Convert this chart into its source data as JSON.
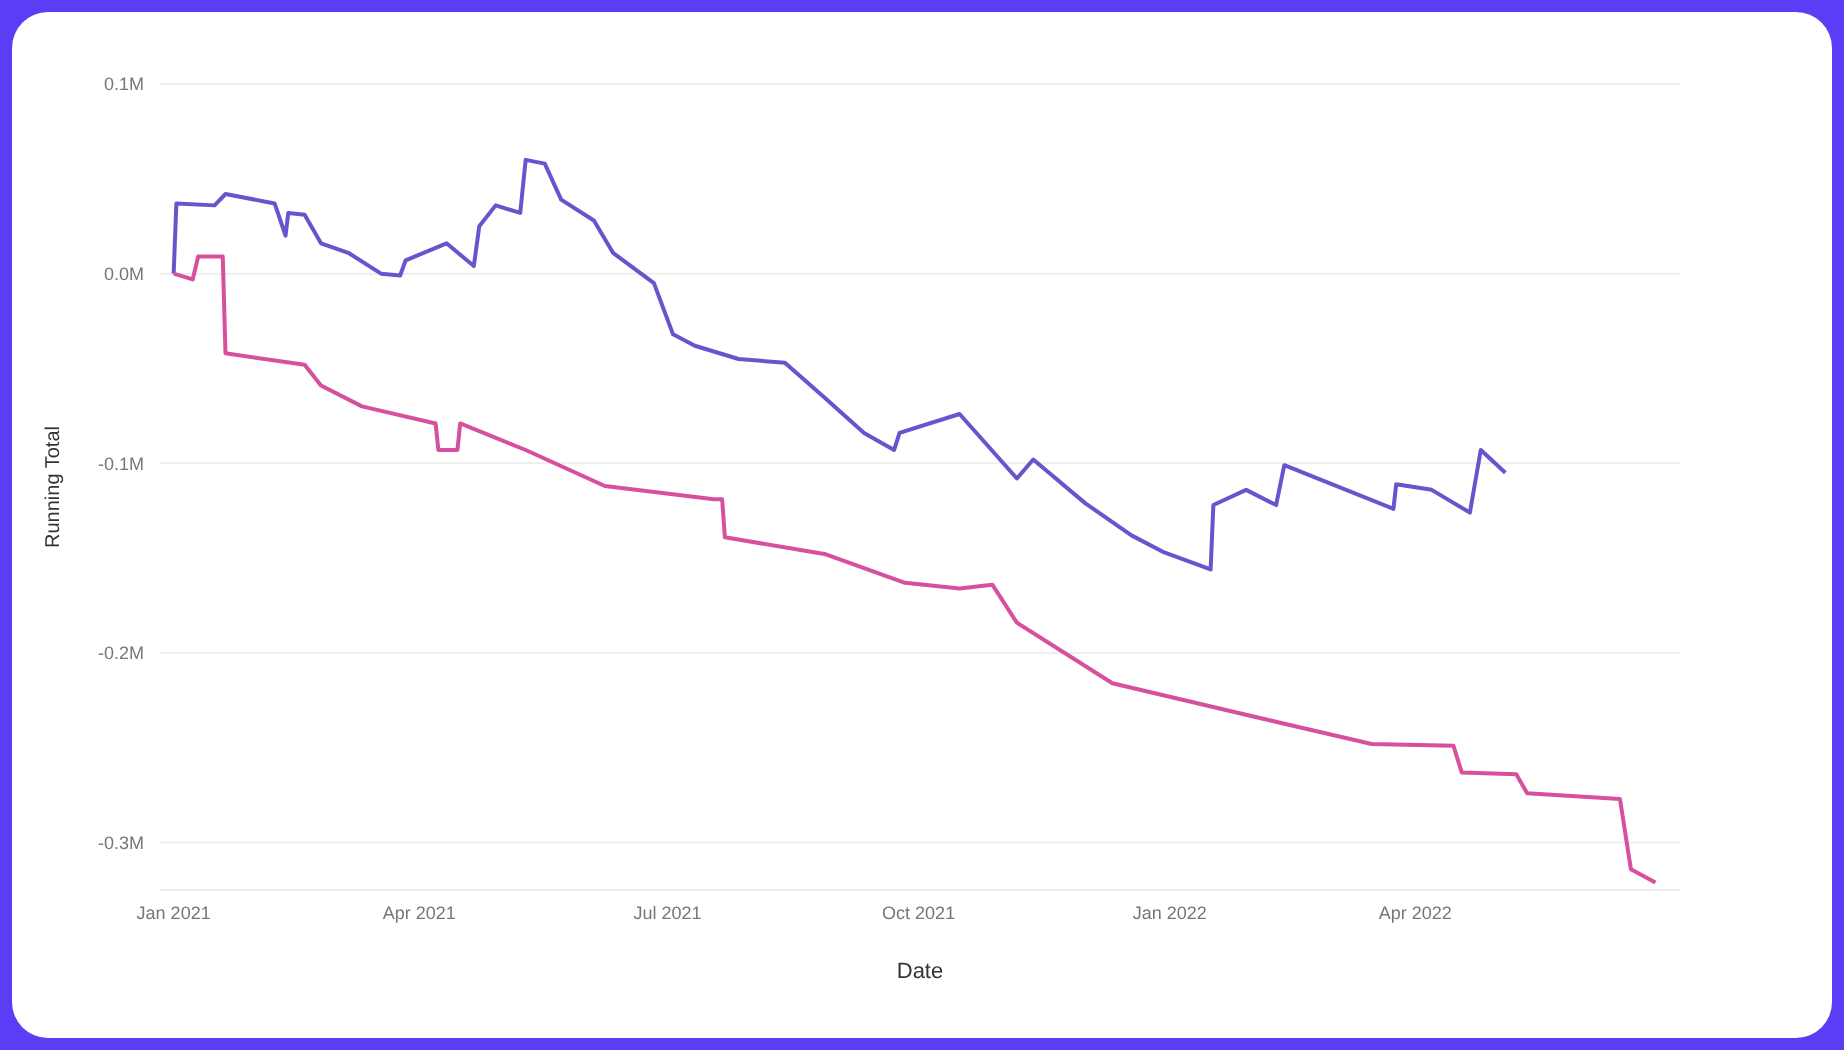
{
  "chart_data": {
    "type": "line",
    "xlabel": "Date",
    "ylabel": "Running Total",
    "xlim": [
      "2020-12-27",
      "2022-07-07"
    ],
    "xticks": [
      {
        "value": "2021-01",
        "label": "Jan 2021"
      },
      {
        "value": "2021-04",
        "label": "Apr 2021"
      },
      {
        "value": "2021-07",
        "label": "Jul 2021"
      },
      {
        "value": "2021-10",
        "label": "Oct 2021"
      },
      {
        "value": "2022-01",
        "label": "Jan 2022"
      },
      {
        "value": "2022-04",
        "label": "Apr 2022"
      }
    ],
    "ylim": [
      -0.325,
      0.1
    ],
    "yticks": [
      {
        "value": 0.1,
        "label": "0.1M"
      },
      {
        "value": 0,
        "label": "0.0M"
      },
      {
        "value": -0.1,
        "label": "-0.1M"
      },
      {
        "value": -0.2,
        "label": "-0.2M"
      },
      {
        "value": -0.3,
        "label": "-0.3M"
      }
    ],
    "grid": "y",
    "marker": "none",
    "line_style": "solid",
    "series": [
      {
        "color": "#6655cc",
        "x": [
          "2021-01-01",
          "2021-01-02",
          "2021-01-16",
          "2021-01-20",
          "2021-02-07",
          "2021-02-11",
          "2021-02-12",
          "2021-02-18",
          "2021-02-24",
          "2021-03-06",
          "2021-03-18",
          "2021-03-25",
          "2021-03-27",
          "2021-04-11",
          "2021-04-21",
          "2021-04-23",
          "2021-04-29",
          "2021-05-08",
          "2021-05-10",
          "2021-05-17",
          "2021-05-23",
          "2021-06-04",
          "2021-06-11",
          "2021-06-26",
          "2021-07-03",
          "2021-07-11",
          "2021-07-27",
          "2021-08-13",
          "2021-08-28",
          "2021-09-11",
          "2021-09-22",
          "2021-09-24",
          "2021-10-16",
          "2021-11-06",
          "2021-11-12",
          "2021-12-01",
          "2021-12-18",
          "2021-12-30",
          "2022-01-16",
          "2022-01-17",
          "2022-01-29",
          "2022-02-09",
          "2022-02-12",
          "2022-03-24",
          "2022-03-25",
          "2022-04-07",
          "2022-04-21",
          "2022-04-25",
          "2022-05-04"
        ],
        "values": [
          0.0,
          0.037,
          0.036,
          0.042,
          0.037,
          0.02,
          0.032,
          0.031,
          0.016,
          0.011,
          0.0,
          -0.001,
          0.007,
          0.016,
          0.004,
          0.025,
          0.036,
          0.032,
          0.06,
          0.058,
          0.039,
          0.028,
          0.011,
          -0.005,
          -0.032,
          -0.038,
          -0.045,
          -0.047,
          -0.066,
          -0.084,
          -0.093,
          -0.084,
          -0.074,
          -0.108,
          -0.098,
          -0.121,
          -0.138,
          -0.147,
          -0.156,
          -0.122,
          -0.114,
          -0.122,
          -0.101,
          -0.124,
          -0.111,
          -0.114,
          -0.126,
          -0.093,
          -0.105
        ]
      },
      {
        "color": "#d6509e",
        "x": [
          "2021-01-01",
          "2021-01-08",
          "2021-01-10",
          "2021-01-19",
          "2021-01-20",
          "2021-02-18",
          "2021-02-24",
          "2021-03-11",
          "2021-04-07",
          "2021-04-08",
          "2021-04-15",
          "2021-04-16",
          "2021-05-10",
          "2021-06-08",
          "2021-07-18",
          "2021-07-21",
          "2021-07-22",
          "2021-08-28",
          "2021-09-26",
          "2021-10-16",
          "2021-10-28",
          "2021-11-06",
          "2021-12-11",
          "2022-02-14",
          "2022-03-16",
          "2022-04-15",
          "2022-04-18",
          "2022-05-08",
          "2022-05-12",
          "2022-06-15",
          "2022-06-19",
          "2022-06-28"
        ],
        "values": [
          0.0,
          -0.003,
          0.009,
          0.009,
          -0.042,
          -0.048,
          -0.059,
          -0.07,
          -0.079,
          -0.093,
          -0.093,
          -0.079,
          -0.093,
          -0.112,
          -0.119,
          -0.119,
          -0.139,
          -0.148,
          -0.163,
          -0.166,
          -0.164,
          -0.184,
          -0.216,
          -0.238,
          -0.248,
          -0.249,
          -0.263,
          -0.264,
          -0.274,
          -0.277,
          -0.314,
          -0.321
        ]
      }
    ]
  }
}
